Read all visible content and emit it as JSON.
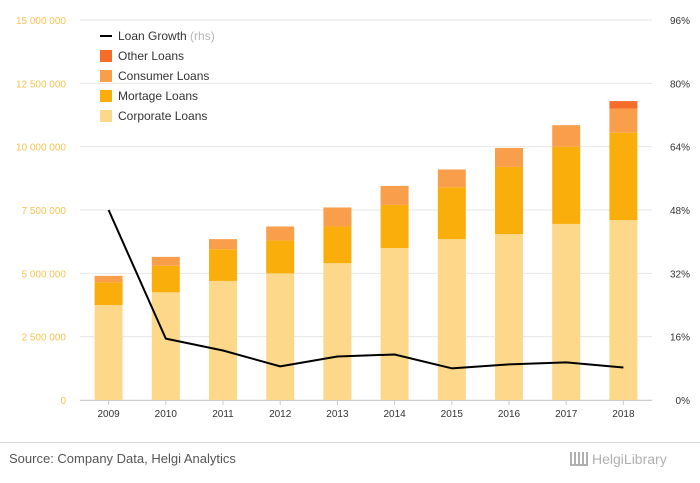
{
  "chart_data": {
    "type": "bar",
    "stacked": true,
    "categories": [
      "2009",
      "2010",
      "2011",
      "2012",
      "2013",
      "2014",
      "2015",
      "2016",
      "2017",
      "2018"
    ],
    "series": [
      {
        "name": "Corporate Loans",
        "color": "#fdd78a",
        "values": [
          3750000,
          4250000,
          4700000,
          5000000,
          5400000,
          6000000,
          6350000,
          6550000,
          6950000,
          7100000
        ]
      },
      {
        "name": "Mortage Loans",
        "color": "#f9ae0c",
        "values": [
          900000,
          1050000,
          1250000,
          1300000,
          1450000,
          1700000,
          2050000,
          2650000,
          3050000,
          3450000
        ]
      },
      {
        "name": "Consumer Loans",
        "color": "#f99f4c",
        "values": [
          250000,
          350000,
          400000,
          550000,
          750000,
          750000,
          700000,
          750000,
          850000,
          950000
        ]
      },
      {
        "name": "Other Loans",
        "color": "#f66d2a",
        "values": [
          0,
          0,
          0,
          0,
          0,
          0,
          0,
          0,
          0,
          300000
        ]
      }
    ],
    "line": {
      "name": "Loan Growth",
      "name_suffix": "(rhs)",
      "color": "#000000",
      "values": [
        48.0,
        15.5,
        12.5,
        8.5,
        11.0,
        11.5,
        8.0,
        9.0,
        9.5,
        8.2
      ]
    },
    "ylim": [
      0,
      15000000
    ],
    "y_ticks": [
      "0",
      "2 500 000",
      "5 000 000",
      "7 500 000",
      "10 000 000",
      "12 500 000",
      "15 000 000"
    ],
    "y2lim": [
      0,
      96
    ],
    "y2_ticks": [
      "0%",
      "16%",
      "32%",
      "48%",
      "64%",
      "80%",
      "96%"
    ],
    "legend_position": "top-left",
    "grid": "horizontal",
    "legend_order": [
      "Loan Growth",
      "Other Loans",
      "Consumer Loans",
      "Mortage Loans",
      "Corporate Loans"
    ]
  },
  "footer": {
    "source": "Source: Company Data, Helgi Analytics",
    "logo": "HelgiLibrary"
  }
}
